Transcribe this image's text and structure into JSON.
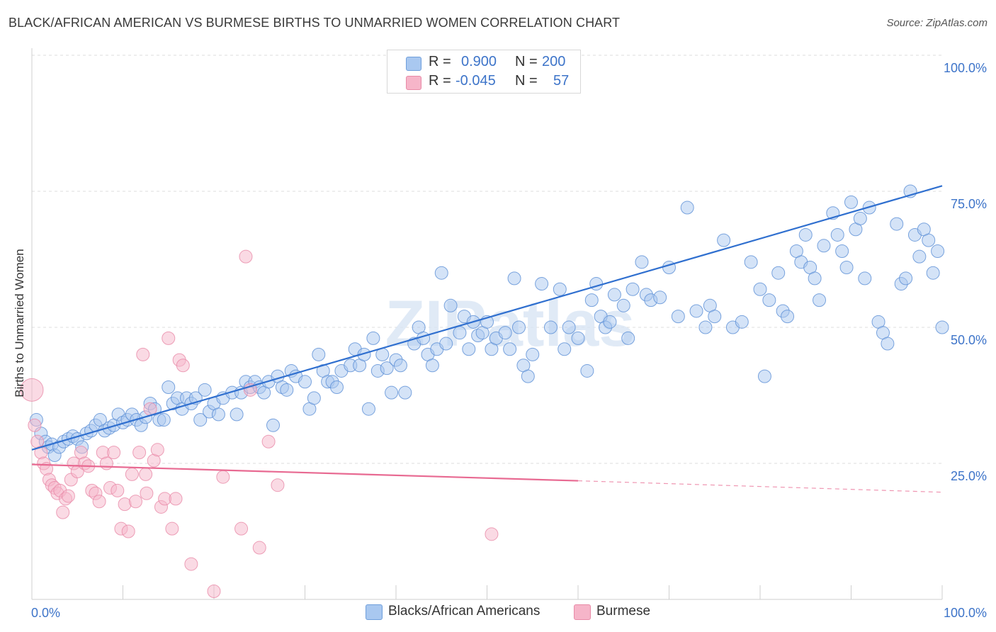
{
  "title": "BLACK/AFRICAN AMERICAN VS BURMESE BIRTHS TO UNMARRIED WOMEN CORRELATION CHART",
  "source": "Source: ZipAtlas.com",
  "watermark": "ZIPatlas",
  "stats": [
    {
      "r_label": "R =",
      "r_value": "0.900",
      "n_label": "N =",
      "n_value": "200",
      "color": "#a9c8f0"
    },
    {
      "r_label": "R =",
      "r_value": "-0.045",
      "n_label": "N =",
      "n_value": "57",
      "color": "#f6b5c9"
    }
  ],
  "legend": [
    {
      "label": "Blacks/African Americans",
      "color": "#a9c8f0"
    },
    {
      "label": "Burmese",
      "color": "#f6b5c9"
    }
  ],
  "chart_data": {
    "type": "scatter",
    "title": "BLACK/AFRICAN AMERICAN VS BURMESE BIRTHS TO UNMARRIED WOMEN CORRELATION CHART",
    "xlabel": "",
    "ylabel": "Births to Unmarried Women",
    "x_tick_labels": [
      "0.0%",
      "100.0%"
    ],
    "y_tick_labels": [
      "25.0%",
      "50.0%",
      "75.0%",
      "100.0%"
    ],
    "y_ticks": [
      25,
      50,
      75,
      100
    ],
    "xlim": [
      0,
      100
    ],
    "ylim": [
      0,
      100
    ],
    "grid": true,
    "series": [
      {
        "name": "Blacks/African Americans",
        "color": "#a9c8f0",
        "stroke": "#5b8fd6",
        "trend": {
          "x": [
            0,
            100
          ],
          "y": [
            27.5,
            76.0
          ],
          "color": "#2f6fcf"
        },
        "points": [
          [
            0.5,
            33
          ],
          [
            1,
            30.5
          ],
          [
            1.5,
            29
          ],
          [
            1.8,
            28
          ],
          [
            2.2,
            28.5
          ],
          [
            2.5,
            26.5
          ],
          [
            3,
            28
          ],
          [
            3.5,
            29
          ],
          [
            4,
            29.5
          ],
          [
            4.5,
            30
          ],
          [
            5,
            29.5
          ],
          [
            5.5,
            28
          ],
          [
            6,
            30.5
          ],
          [
            6.5,
            31
          ],
          [
            7,
            32
          ],
          [
            7.5,
            33
          ],
          [
            8,
            31
          ],
          [
            8.5,
            31.5
          ],
          [
            9,
            32
          ],
          [
            9.5,
            34
          ],
          [
            10,
            32.5
          ],
          [
            10.5,
            33
          ],
          [
            11,
            34
          ],
          [
            11.5,
            33
          ],
          [
            12,
            32
          ],
          [
            12.5,
            33.5
          ],
          [
            13,
            36
          ],
          [
            13.5,
            35
          ],
          [
            14,
            33
          ],
          [
            14.5,
            33
          ],
          [
            15,
            39
          ],
          [
            15.5,
            36
          ],
          [
            16,
            37
          ],
          [
            16.5,
            35
          ],
          [
            17,
            37
          ],
          [
            17.5,
            36
          ],
          [
            18,
            37
          ],
          [
            18.5,
            33
          ],
          [
            19,
            38.5
          ],
          [
            19.5,
            34.5
          ],
          [
            20,
            36
          ],
          [
            20.5,
            34
          ],
          [
            21,
            37
          ],
          [
            22,
            38
          ],
          [
            22.5,
            34
          ],
          [
            23,
            38
          ],
          [
            23.5,
            40
          ],
          [
            24,
            39
          ],
          [
            24.5,
            40
          ],
          [
            25,
            39
          ],
          [
            25.5,
            38
          ],
          [
            26,
            40
          ],
          [
            26.5,
            32
          ],
          [
            27,
            41
          ],
          [
            27.5,
            39
          ],
          [
            28,
            38.5
          ],
          [
            28.5,
            42
          ],
          [
            29,
            41
          ],
          [
            30,
            40
          ],
          [
            30.5,
            35
          ],
          [
            31,
            37
          ],
          [
            31.5,
            45
          ],
          [
            32,
            42
          ],
          [
            32.5,
            40
          ],
          [
            33,
            40
          ],
          [
            33.5,
            39
          ],
          [
            34,
            42
          ],
          [
            35,
            43
          ],
          [
            35.5,
            46
          ],
          [
            36,
            43
          ],
          [
            36.5,
            45
          ],
          [
            37,
            35
          ],
          [
            37.5,
            48
          ],
          [
            38,
            42
          ],
          [
            38.5,
            45
          ],
          [
            39,
            42.5
          ],
          [
            39.5,
            38
          ],
          [
            40,
            44
          ],
          [
            40.5,
            43
          ],
          [
            41,
            38
          ],
          [
            42,
            47
          ],
          [
            42.5,
            50
          ],
          [
            43,
            48
          ],
          [
            43.5,
            45
          ],
          [
            44,
            43
          ],
          [
            44.5,
            46
          ],
          [
            45,
            60
          ],
          [
            45.5,
            47
          ],
          [
            46,
            54
          ],
          [
            47,
            49
          ],
          [
            47.5,
            52
          ],
          [
            48,
            46
          ],
          [
            48.5,
            51
          ],
          [
            49,
            48.5
          ],
          [
            49.5,
            49
          ],
          [
            50,
            51
          ],
          [
            50.5,
            46
          ],
          [
            51,
            48
          ],
          [
            52,
            49
          ],
          [
            52.5,
            46
          ],
          [
            53,
            59
          ],
          [
            53.5,
            50
          ],
          [
            54,
            43
          ],
          [
            54.5,
            41
          ],
          [
            55,
            45
          ],
          [
            56,
            58
          ],
          [
            57,
            50
          ],
          [
            58,
            57
          ],
          [
            58.5,
            46
          ],
          [
            59,
            50
          ],
          [
            60,
            48
          ],
          [
            61,
            42
          ],
          [
            61.5,
            55
          ],
          [
            62,
            58
          ],
          [
            62.5,
            52
          ],
          [
            63,
            50
          ],
          [
            63.5,
            51
          ],
          [
            64,
            56
          ],
          [
            65,
            54
          ],
          [
            65.5,
            48
          ],
          [
            66,
            57
          ],
          [
            67,
            62
          ],
          [
            67.5,
            56
          ],
          [
            68,
            55
          ],
          [
            69,
            55.5
          ],
          [
            70,
            61
          ],
          [
            71,
            52
          ],
          [
            72,
            72
          ],
          [
            73,
            53
          ],
          [
            74,
            50
          ],
          [
            74.5,
            54
          ],
          [
            75,
            52
          ],
          [
            76,
            66
          ],
          [
            77,
            50
          ],
          [
            78,
            51
          ],
          [
            79,
            62
          ],
          [
            80,
            57
          ],
          [
            80.5,
            41
          ],
          [
            81,
            55
          ],
          [
            82,
            60
          ],
          [
            82.5,
            53
          ],
          [
            83,
            52
          ],
          [
            84,
            64
          ],
          [
            84.5,
            62
          ],
          [
            85,
            67
          ],
          [
            85.5,
            61
          ],
          [
            86,
            59
          ],
          [
            86.5,
            55
          ],
          [
            87,
            65
          ],
          [
            88,
            71
          ],
          [
            88.5,
            67
          ],
          [
            89,
            64
          ],
          [
            89.5,
            61
          ],
          [
            90,
            73
          ],
          [
            90.5,
            68
          ],
          [
            91,
            70
          ],
          [
            91.5,
            59
          ],
          [
            92,
            72
          ],
          [
            93,
            51
          ],
          [
            93.5,
            49
          ],
          [
            94,
            47
          ],
          [
            95,
            69
          ],
          [
            95.5,
            58
          ],
          [
            96,
            59
          ],
          [
            96.5,
            75
          ],
          [
            97,
            67
          ],
          [
            97.5,
            63
          ],
          [
            98,
            68
          ],
          [
            98.5,
            66
          ],
          [
            99,
            60
          ],
          [
            99.5,
            64
          ],
          [
            100,
            50
          ]
        ]
      },
      {
        "name": "Burmese",
        "color": "#f6b5c9",
        "stroke": "#e88aa7",
        "trend": {
          "x": [
            0,
            60
          ],
          "y": [
            24.8,
            21.8
          ],
          "color": "#e86a92",
          "dash_to": [
            100,
            19.7
          ]
        },
        "points": [
          [
            0,
            38.5
          ],
          [
            0.3,
            32
          ],
          [
            0.6,
            29
          ],
          [
            1,
            27
          ],
          [
            1.3,
            25
          ],
          [
            1.6,
            24
          ],
          [
            1.9,
            22
          ],
          [
            2.2,
            21
          ],
          [
            2.5,
            20.5
          ],
          [
            2.8,
            19.5
          ],
          [
            3.1,
            20
          ],
          [
            3.4,
            16
          ],
          [
            3.7,
            18.5
          ],
          [
            4,
            19
          ],
          [
            4.3,
            22
          ],
          [
            4.6,
            25
          ],
          [
            5,
            23.5
          ],
          [
            5.4,
            27
          ],
          [
            5.8,
            25
          ],
          [
            6.2,
            24.5
          ],
          [
            6.6,
            20
          ],
          [
            7,
            19.5
          ],
          [
            7.4,
            18
          ],
          [
            7.8,
            27
          ],
          [
            8.2,
            25
          ],
          [
            8.6,
            20.5
          ],
          [
            9,
            27
          ],
          [
            9.4,
            20
          ],
          [
            9.8,
            13
          ],
          [
            10.2,
            17.5
          ],
          [
            10.6,
            12.5
          ],
          [
            11,
            23
          ],
          [
            11.4,
            18
          ],
          [
            11.8,
            27
          ],
          [
            12.2,
            45
          ],
          [
            12.6,
            19.5
          ],
          [
            13,
            35
          ],
          [
            13.4,
            25.5
          ],
          [
            13.8,
            27.5
          ],
          [
            14.2,
            17
          ],
          [
            14.6,
            18.5
          ],
          [
            15,
            48
          ],
          [
            15.4,
            13
          ],
          [
            15.8,
            18.5
          ],
          [
            16.2,
            44
          ],
          [
            16.6,
            43
          ],
          [
            17.5,
            6.5
          ],
          [
            20,
            1.5
          ],
          [
            21,
            22.5
          ],
          [
            23,
            13
          ],
          [
            23.5,
            63
          ],
          [
            24,
            38.5
          ],
          [
            25,
            9.5
          ],
          [
            26,
            29
          ],
          [
            27,
            21
          ],
          [
            50.5,
            12
          ],
          [
            12.5,
            23
          ]
        ]
      }
    ]
  }
}
